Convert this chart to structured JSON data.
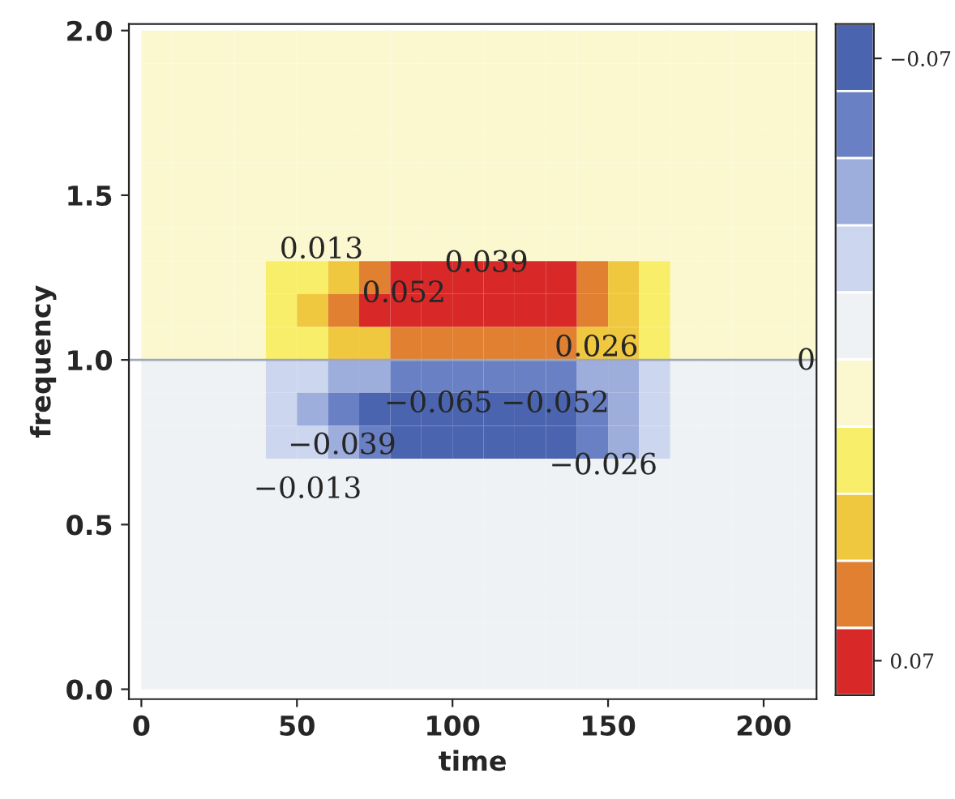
{
  "chart_data": {
    "type": "heatmap",
    "xlabel": "time",
    "ylabel": "frequency",
    "x": [
      5,
      15,
      25,
      35,
      45,
      55,
      65,
      75,
      85,
      95,
      105,
      115,
      125,
      135,
      145,
      155,
      165,
      175,
      185,
      195,
      205,
      215
    ],
    "y": [
      1.95,
      1.85,
      1.75,
      1.65,
      1.55,
      1.45,
      1.35,
      1.25,
      1.15,
      1.05,
      0.95,
      0.85,
      0.75,
      0.65,
      0.55,
      0.45,
      0.35,
      0.25,
      0.15,
      0.05
    ],
    "cells": [
      [
        0.006,
        0.006,
        0.006,
        0.006,
        0.006,
        0.006,
        0.006,
        0.006,
        0.006,
        0.006,
        0.006,
        0.006,
        0.006,
        0.006,
        0.006,
        0.006,
        0.006,
        0.006,
        0.006,
        0.006,
        0.006,
        0.006
      ],
      [
        0.006,
        0.006,
        0.006,
        0.006,
        0.006,
        0.006,
        0.006,
        0.006,
        0.006,
        0.006,
        0.006,
        0.006,
        0.006,
        0.006,
        0.006,
        0.006,
        0.006,
        0.006,
        0.006,
        0.006,
        0.006,
        0.006
      ],
      [
        0.006,
        0.006,
        0.006,
        0.006,
        0.006,
        0.006,
        0.006,
        0.006,
        0.006,
        0.006,
        0.006,
        0.006,
        0.006,
        0.006,
        0.006,
        0.006,
        0.006,
        0.006,
        0.006,
        0.006,
        0.006,
        0.006
      ],
      [
        0.006,
        0.006,
        0.006,
        0.006,
        0.006,
        0.006,
        0.006,
        0.006,
        0.006,
        0.006,
        0.006,
        0.006,
        0.006,
        0.006,
        0.006,
        0.006,
        0.006,
        0.006,
        0.006,
        0.006,
        0.006,
        0.006
      ],
      [
        0.006,
        0.006,
        0.006,
        0.006,
        0.006,
        0.006,
        0.006,
        0.006,
        0.006,
        0.006,
        0.006,
        0.006,
        0.006,
        0.006,
        0.006,
        0.006,
        0.006,
        0.006,
        0.006,
        0.006,
        0.006,
        0.006
      ],
      [
        0.006,
        0.006,
        0.006,
        0.006,
        0.006,
        0.006,
        0.006,
        0.006,
        0.006,
        0.006,
        0.006,
        0.006,
        0.006,
        0.006,
        0.006,
        0.006,
        0.006,
        0.006,
        0.006,
        0.006,
        0.006,
        0.006
      ],
      [
        0.006,
        0.006,
        0.006,
        0.006,
        0.006,
        0.006,
        0.006,
        0.006,
        0.006,
        0.006,
        0.006,
        0.006,
        0.006,
        0.006,
        0.006,
        0.006,
        0.006,
        0.006,
        0.006,
        0.006,
        0.006,
        0.006
      ],
      [
        0.006,
        0.006,
        0.006,
        0.006,
        0.02,
        0.02,
        0.035,
        0.05,
        0.065,
        0.065,
        0.065,
        0.065,
        0.065,
        0.065,
        0.05,
        0.035,
        0.02,
        0.006,
        0.006,
        0.006,
        0.006,
        0.006
      ],
      [
        0.006,
        0.006,
        0.006,
        0.006,
        0.02,
        0.035,
        0.05,
        0.065,
        0.065,
        0.065,
        0.065,
        0.065,
        0.065,
        0.065,
        0.05,
        0.035,
        0.02,
        0.006,
        0.006,
        0.006,
        0.006,
        0.006
      ],
      [
        0.006,
        0.006,
        0.006,
        0.006,
        0.02,
        0.02,
        0.035,
        0.035,
        0.05,
        0.05,
        0.05,
        0.05,
        0.05,
        0.05,
        0.035,
        0.035,
        0.02,
        0.006,
        0.006,
        0.006,
        0.006,
        0.006
      ],
      [
        -0.006,
        -0.006,
        -0.006,
        -0.006,
        -0.02,
        -0.02,
        -0.035,
        -0.035,
        -0.05,
        -0.05,
        -0.05,
        -0.05,
        -0.05,
        -0.05,
        -0.035,
        -0.035,
        -0.02,
        -0.006,
        -0.006,
        -0.006,
        -0.006,
        -0.006
      ],
      [
        -0.006,
        -0.006,
        -0.006,
        -0.006,
        -0.02,
        -0.035,
        -0.05,
        -0.065,
        -0.065,
        -0.065,
        -0.065,
        -0.065,
        -0.065,
        -0.065,
        -0.05,
        -0.035,
        -0.02,
        -0.006,
        -0.006,
        -0.006,
        -0.006,
        -0.006
      ],
      [
        -0.006,
        -0.006,
        -0.006,
        -0.006,
        -0.02,
        -0.02,
        -0.035,
        -0.05,
        -0.065,
        -0.065,
        -0.065,
        -0.065,
        -0.065,
        -0.065,
        -0.05,
        -0.035,
        -0.02,
        -0.006,
        -0.006,
        -0.006,
        -0.006,
        -0.006
      ],
      [
        -0.006,
        -0.006,
        -0.006,
        -0.006,
        -0.006,
        -0.006,
        -0.006,
        -0.006,
        -0.006,
        -0.006,
        -0.006,
        -0.006,
        -0.006,
        -0.006,
        -0.006,
        -0.006,
        -0.006,
        -0.006,
        -0.006,
        -0.006,
        -0.006,
        -0.006
      ],
      [
        -0.006,
        -0.006,
        -0.006,
        -0.006,
        -0.006,
        -0.006,
        -0.006,
        -0.006,
        -0.006,
        -0.006,
        -0.006,
        -0.006,
        -0.006,
        -0.006,
        -0.006,
        -0.006,
        -0.006,
        -0.006,
        -0.006,
        -0.006,
        -0.006,
        -0.006
      ],
      [
        -0.006,
        -0.006,
        -0.006,
        -0.006,
        -0.006,
        -0.006,
        -0.006,
        -0.006,
        -0.006,
        -0.006,
        -0.006,
        -0.006,
        -0.006,
        -0.006,
        -0.006,
        -0.006,
        -0.006,
        -0.006,
        -0.006,
        -0.006,
        -0.006,
        -0.006
      ],
      [
        -0.006,
        -0.006,
        -0.006,
        -0.006,
        -0.006,
        -0.006,
        -0.006,
        -0.006,
        -0.006,
        -0.006,
        -0.006,
        -0.006,
        -0.006,
        -0.006,
        -0.006,
        -0.006,
        -0.006,
        -0.006,
        -0.006,
        -0.006,
        -0.006,
        -0.006
      ],
      [
        -0.006,
        -0.006,
        -0.006,
        -0.006,
        -0.006,
        -0.006,
        -0.006,
        -0.006,
        -0.006,
        -0.006,
        -0.006,
        -0.006,
        -0.006,
        -0.006,
        -0.006,
        -0.006,
        -0.006,
        -0.006,
        -0.006,
        -0.006,
        -0.006,
        -0.006
      ],
      [
        -0.006,
        -0.006,
        -0.006,
        -0.006,
        -0.006,
        -0.006,
        -0.006,
        -0.006,
        -0.006,
        -0.006,
        -0.006,
        -0.006,
        -0.006,
        -0.006,
        -0.006,
        -0.006,
        -0.006,
        -0.006,
        -0.006,
        -0.006,
        -0.006,
        -0.006
      ],
      [
        -0.006,
        -0.006,
        -0.006,
        -0.006,
        -0.006,
        -0.006,
        -0.006,
        -0.006,
        -0.006,
        -0.006,
        -0.006,
        -0.006,
        -0.006,
        -0.006,
        -0.006,
        -0.006,
        -0.006,
        -0.006,
        -0.006,
        -0.006,
        -0.006,
        -0.006
      ]
    ],
    "colors": [
      "#4a64b0",
      "#6a80c4",
      "#9eaedc",
      "#ccd6ee",
      "#eef2f4",
      "#fbf8d0",
      "#f8ee6a",
      "#f0c840",
      "#e08030",
      "#d82828"
    ],
    "clim": [
      0.078,
      -0.078
    ],
    "cticks": [
      {
        "value": -0.07,
        "label": "−0.07"
      },
      {
        "value": 0.07,
        "label": "0.07"
      }
    ],
    "xlim": [
      -4,
      217
    ],
    "ylim": [
      -0.03,
      2.02
    ],
    "xticks": [
      0,
      50,
      100,
      150,
      200
    ],
    "yticks": [
      {
        "value": 0,
        "label": "0.0"
      },
      {
        "value": 0.5,
        "label": "0.5"
      },
      {
        "value": 1.0,
        "label": "1.0"
      },
      {
        "value": 1.5,
        "label": "1.5"
      },
      {
        "value": 2.0,
        "label": "2.0"
      }
    ],
    "ref_lines": [
      {
        "axis": "y",
        "value": 1.0,
        "color": "#a0a8b8"
      }
    ],
    "annotations": [
      "0.013",
      "0.039",
      "0.052",
      "0.026",
      "0",
      "−0.065",
      "−0.052",
      "−0.039",
      "−0.026",
      "−0.013"
    ],
    "grid": false
  }
}
